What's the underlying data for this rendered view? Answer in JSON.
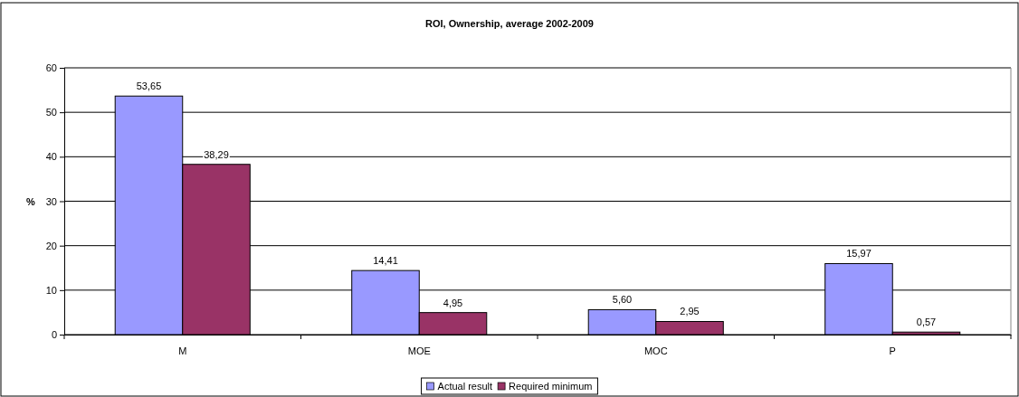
{
  "chart_data": {
    "type": "bar",
    "title": "ROI, Ownership, average 2002-2009",
    "ylabel": "%",
    "categories": [
      "M",
      "MOE",
      "MOC",
      "P"
    ],
    "series": [
      {
        "name": "Actual result",
        "color": "#9999ff",
        "values": [
          53.65,
          14.41,
          5.6,
          15.97
        ],
        "value_labels": [
          "53,65",
          "14,41",
          "5,60",
          "15,97"
        ]
      },
      {
        "name": "Required minimum",
        "color": "#993366",
        "values": [
          38.29,
          4.95,
          2.95,
          0.57
        ],
        "value_labels": [
          "38,29",
          "4,95",
          "2,95",
          "0,57"
        ]
      }
    ],
    "ylim": [
      0,
      60
    ],
    "yticks": [
      0,
      10,
      20,
      30,
      40,
      50,
      60
    ],
    "grid": "y",
    "legend": "bottom"
  }
}
